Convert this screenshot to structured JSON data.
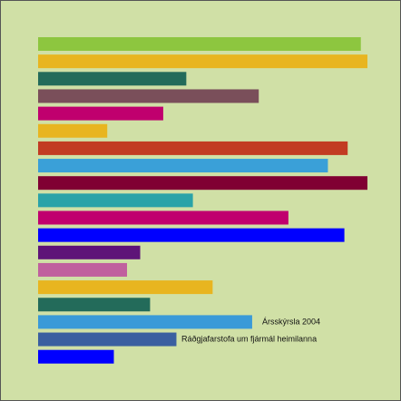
{
  "chart_data": {
    "type": "hbar",
    "xlim": [
      0,
      100
    ],
    "values": [
      98,
      100,
      45,
      67,
      38,
      21,
      94,
      88,
      100,
      47,
      76,
      93,
      31,
      27,
      53,
      34,
      65,
      42,
      23
    ],
    "colors": [
      "#8dc63f",
      "#e8b520",
      "#236b5a",
      "#7a4f5a",
      "#c0006e",
      "#e8b520",
      "#c23b22",
      "#3aa0d8",
      "#800033",
      "#2aa3a8",
      "#c0006e",
      "#0000ff",
      "#5e1478",
      "#c0609e",
      "#e8b520",
      "#236b5a",
      "#3a9ad8",
      "#3a5fa0",
      "#0000ff"
    ],
    "annotations": [
      "Ársskýrsla 2004",
      "Ráðgjafarstofa um fjármál heimilanna"
    ]
  }
}
